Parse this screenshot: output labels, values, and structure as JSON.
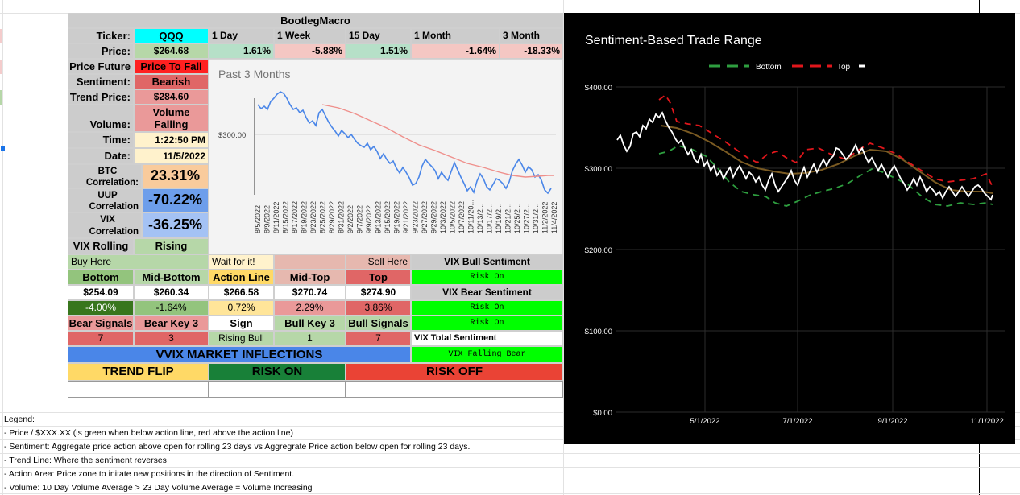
{
  "title": "BootlegMacro",
  "periods": {
    "d1": "1 Day",
    "w1": "1 Week",
    "d15": "15 Day",
    "m1": "1 Month",
    "m3": "3 Month"
  },
  "changes": {
    "d1": "1.61%",
    "w1": "-5.88%",
    "d15": "1.51%",
    "m1": "-1.64%",
    "m3": "-18.33%"
  },
  "left": {
    "ticker_label": "Ticker:",
    "ticker": "QQQ",
    "price_label": "Price:",
    "price": "$264.68",
    "future_label": "Price Future",
    "future": "Price To Fall",
    "sentiment_label": "Sentiment:",
    "sentiment": "Bearish",
    "trend_label": "Trend Price:",
    "trend": "$284.60",
    "volume_label": "Volume:",
    "volume_line1": "Volume",
    "volume_line2": "Falling",
    "time_label": "Time:",
    "time": "1:22:50 PM",
    "date_label": "Date:",
    "date": "11/5/2022",
    "btc_label1": "BTC",
    "btc_label2": "Correlation:",
    "btc": "23.31%",
    "uup_label1": "UUP",
    "uup_label2": "Correlation",
    "uup": "-70.22%",
    "vix_label1": "VIX",
    "vix_label2": "Correlation",
    "vix": "-36.25%",
    "vixr_label": "VIX Rolling",
    "vixr": "Rising"
  },
  "mini_chart": {
    "title": "Past 3 Months",
    "ytick": "$300.00",
    "dates": [
      "8/5/2022",
      "8/9/2022",
      "8/11/2022",
      "8/15/2022",
      "8/17/2022",
      "8/19/2022",
      "8/23/2022",
      "8/25/2022",
      "8/29/2022",
      "8/31/2022",
      "9/2/2022",
      "9/7/2022",
      "9/9/2022",
      "9/13/2022",
      "9/15/2022",
      "9/19/2022",
      "9/21/2022",
      "9/23/2022",
      "9/27/2022",
      "9/29/2022",
      "10/3/2022",
      "10/5/2022",
      "10/7/2022",
      "10/11/20...",
      "10/13/2...",
      "10/17/2...",
      "10/19/2...",
      "10/21/2...",
      "10/25/2...",
      "10/27/2...",
      "10/31/2...",
      "11/2/2022",
      "11/4/2022"
    ]
  },
  "action": {
    "buy_here": "Buy Here",
    "wait": "Wait for it!",
    "sell_here": "Sell Here",
    "headers": [
      "Bottom",
      "Mid-Bottom",
      "Action Line",
      "Mid-Top",
      "Top"
    ],
    "prices": [
      "$254.09",
      "$260.34",
      "$266.58",
      "$270.74",
      "$274.90"
    ],
    "pcts": [
      "-4.00%",
      "-1.64%",
      "0.72%",
      "2.29%",
      "3.86%"
    ],
    "signal_headers": [
      "Bear Signals",
      "Bear Key 3",
      "Sign",
      "Bull Key 3",
      "Bull Signals"
    ],
    "signal_values": [
      "7",
      "3",
      "Rising Bull",
      "1",
      "7"
    ]
  },
  "vix_panel": {
    "bull_title": "VIX Bull Sentiment",
    "bull_value": "Risk On",
    "bear_title": "VIX Bear Sentiment",
    "bear_value1": "Risk On",
    "bear_value2": "Risk On",
    "total_title": "VIX Total Sentiment",
    "total_value": "VIX Falling Bear"
  },
  "banners": {
    "vvix": "VVIX MARKET INFLECTIONS",
    "trend_flip": "TREND FLIP",
    "risk_on": "RISK ON",
    "risk_off": "RISK OFF"
  },
  "legend": {
    "title": "Legend:",
    "lines": [
      "- Price / $XXX.XX (is green when below action line, red above the action line)",
      "- Sentiment: Aggregate price action above open for rolling 23 days vs Aggregrate Price action below open for rolling 23 days.",
      "- Trend Line: Where the sentiment reverses",
      "- Action Area: Price zone to initate new positions in the direction of Sentiment.",
      "- Volume: 10 Day Volume Average > 23 Day Volume Average = Volume Increasing"
    ]
  },
  "chart_data": {
    "type": "line",
    "title": "Sentiment-Based Trade Range",
    "legend": [
      "Bottom",
      "Top",
      ""
    ],
    "y_ticks": [
      "$400.00",
      "$300.00",
      "$200.00",
      "$100.00",
      "$0.00"
    ],
    "x_ticks": [
      "5/1/2022",
      "7/1/2022",
      "9/1/2022",
      "11/1/2022"
    ],
    "ylim": [
      0,
      400
    ],
    "colors": {
      "price": "#ffffff",
      "bottom": "#2e9e3f",
      "top": "#e0161b",
      "trend": "#8a6a2a",
      "bg": "#000000"
    }
  }
}
